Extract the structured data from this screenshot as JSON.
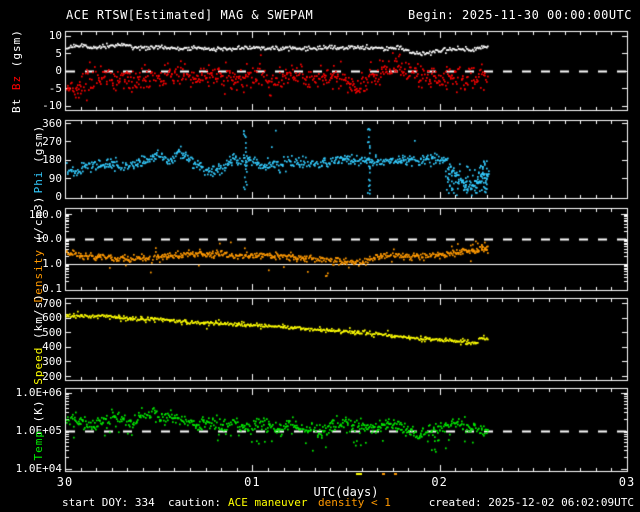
{
  "title": "ACE RTSW[Estimated] MAG & SWEPAM",
  "begin_label": "Begin: 2025-11-30 00:00:00UTC",
  "footer": {
    "start_doy": "start DOY: 334",
    "caution_label": "caution:",
    "caution_maneuver": "ACE maneuver",
    "caution_density": "density < 1",
    "created": "created: 2025-12-02 06:02:09UTC"
  },
  "colors": {
    "background": "#000000",
    "frame": "#ffffff",
    "bt": "#ffffff",
    "bz": "#ff0000",
    "phi": "#33ccff",
    "density": "#ff9900",
    "speed": "#ffff00",
    "temp": "#00ee00"
  },
  "chart_data": {
    "type": "scatter",
    "x_axis": {
      "label": "UTC(days)",
      "range_days": [
        0,
        3
      ],
      "data_end_day": 2.258,
      "ticks": [
        {
          "day": 0,
          "label": "30"
        },
        {
          "day": 1,
          "label": "01"
        },
        {
          "day": 2,
          "label": "02"
        },
        {
          "day": 3,
          "label": "03"
        }
      ]
    },
    "caution_markers": [
      {
        "day": 1.555,
        "width": 6,
        "color": "#ffff00",
        "kind": "maneuver"
      },
      {
        "day": 1.69,
        "width": 3,
        "color": "#ff9900",
        "kind": "density<1"
      },
      {
        "day": 1.755,
        "width": 3,
        "color": "#ff9900",
        "kind": "density<1"
      }
    ],
    "panels": [
      {
        "id": "mag",
        "scale": "linear",
        "label_parts": [
          {
            "text": "Bt ",
            "color": "#ffffff"
          },
          {
            "text": "Bz",
            "color": "#ff0000"
          },
          {
            "text": " (gsm)",
            "color": "#ffffff"
          }
        ],
        "ticks": [
          {
            "value": 10,
            "label": "10"
          },
          {
            "value": 5,
            "label": "5"
          },
          {
            "value": 0,
            "label": "0"
          },
          {
            "value": -5,
            "label": "-5"
          },
          {
            "value": -10,
            "label": "-10"
          }
        ],
        "ref_lines": [
          {
            "value": 0,
            "style": "dashed"
          }
        ],
        "series": [
          {
            "name": "Bt",
            "color": "#ffffff",
            "style": "line",
            "spread": 0.3,
            "x": [
              0,
              0.08,
              0.15,
              0.25,
              0.3,
              0.4,
              0.5,
              0.6,
              0.7,
              0.8,
              0.9,
              1.0,
              1.1,
              1.2,
              1.3,
              1.4,
              1.5,
              1.6,
              1.7,
              1.78,
              1.84,
              1.9,
              2.0,
              2.1,
              2.18,
              2.26
            ],
            "y": [
              6.6,
              7.2,
              6.5,
              7.0,
              7.3,
              6.3,
              6.8,
              6.1,
              6.4,
              6.0,
              6.3,
              6.6,
              6.2,
              6.5,
              6.3,
              6.7,
              6.4,
              6.6,
              6.3,
              6.8,
              5.2,
              4.8,
              5.6,
              6.3,
              6.0,
              7.2
            ]
          },
          {
            "name": "Bz",
            "color": "#ff0000",
            "style": "scatter",
            "spread": 1.6,
            "outlier": {
              "prob": 0.05,
              "mult": 2.4
            },
            "x": [
              0,
              0.06,
              0.12,
              0.2,
              0.3,
              0.4,
              0.5,
              0.6,
              0.7,
              0.8,
              0.9,
              1.0,
              1.1,
              1.2,
              1.3,
              1.4,
              1.5,
              1.58,
              1.66,
              1.72,
              1.78,
              1.85,
              1.95,
              2.05,
              2.12,
              2.2,
              2.26
            ],
            "y": [
              -4,
              -5,
              -2.5,
              -1.5,
              -3,
              -1.5,
              -2.5,
              -1,
              -2.5,
              -1.5,
              -2.5,
              -1.5,
              -3,
              -1,
              -2.5,
              -1.5,
              -3.5,
              -4,
              -1.5,
              1.5,
              0.5,
              -1,
              -2.5,
              -1.5,
              -3,
              -2,
              -0.5
            ]
          }
        ]
      },
      {
        "id": "phi",
        "scale": "linear",
        "label_parts": [
          {
            "text": "Phi",
            "color": "#33ccff"
          },
          {
            "text": " (gsm)",
            "color": "#ffffff"
          }
        ],
        "ticks": [
          {
            "value": 360,
            "label": "360"
          },
          {
            "value": 270,
            "label": "270"
          },
          {
            "value": 180,
            "label": "180"
          },
          {
            "value": 90,
            "label": "90"
          },
          {
            "value": 0,
            "label": "0"
          }
        ],
        "ref_lines": [],
        "series": [
          {
            "name": "Phi",
            "color": "#33ccff",
            "style": "scatter",
            "spread": 13,
            "outlier": {
              "prob": 0.02,
              "uniform": [
                2,
                358
              ]
            },
            "clusters": [
              {
                "day": 0.957,
                "lo": 35,
                "hi": 345,
                "n": 20,
                "dd": 0.008
              },
              {
                "day": 1.617,
                "lo": 8,
                "hi": 335,
                "n": 24,
                "dd": 0.008
              },
              {
                "day": 2.14,
                "lo": 2,
                "hi": 150,
                "n": 70,
                "dd": 0.11
              },
              {
                "day": 2.23,
                "lo": 20,
                "hi": 180,
                "n": 26,
                "dd": 0.03
              }
            ],
            "x": [
              0,
              0.05,
              0.1,
              0.15,
              0.2,
              0.25,
              0.3,
              0.35,
              0.4,
              0.45,
              0.5,
              0.55,
              0.6,
              0.65,
              0.7,
              0.75,
              0.8,
              0.85,
              0.9,
              0.95,
              1.0,
              1.05,
              1.1,
              1.15,
              1.2,
              1.3,
              1.4,
              1.5,
              1.6,
              1.7,
              1.8,
              1.9,
              2.0,
              2.05,
              2.1,
              2.15,
              2.2,
              2.26
            ],
            "y": [
              140,
              115,
              145,
              160,
              145,
              170,
              140,
              155,
              170,
              185,
              205,
              170,
              215,
              185,
              155,
              130,
              120,
              145,
              195,
              165,
              180,
              150,
              160,
              140,
              170,
              160,
              165,
              180,
              175,
              165,
              180,
              180,
              190,
              150,
              75,
              40,
              65,
              125
            ]
          }
        ]
      },
      {
        "id": "density",
        "scale": "log",
        "label_parts": [
          {
            "text": "Density",
            "color": "#ff9900"
          },
          {
            "text": " (/cm3)",
            "color": "#ffffff"
          }
        ],
        "ticks": [
          {
            "value": 100,
            "label": "100.0"
          },
          {
            "value": 10,
            "label": "10.0"
          },
          {
            "value": 1,
            "label": "1.0"
          },
          {
            "value": 0.1,
            "label": "0.1"
          }
        ],
        "ref_lines": [
          {
            "value": 10,
            "style": "dashed"
          },
          {
            "value": 1,
            "style": "solid"
          }
        ],
        "series": [
          {
            "name": "Density",
            "color": "#ff9900",
            "style": "scatter",
            "spread_dec": 0.07,
            "outlier": {
              "prob": 0.07,
              "mult_dec": 0.32
            },
            "clusters": [
              {
                "day": 1.39,
                "lo": 0.3,
                "hi": 0.5,
                "n": 2,
                "dd": 0.004
              },
              {
                "day": 2.2,
                "lo": 4,
                "hi": 8,
                "n": 10,
                "dd": 0.05
              }
            ],
            "x": [
              0,
              0.1,
              0.2,
              0.3,
              0.4,
              0.5,
              0.6,
              0.7,
              0.8,
              0.9,
              1.0,
              1.1,
              1.2,
              1.3,
              1.4,
              1.5,
              1.58,
              1.7,
              1.8,
              1.9,
              2.0,
              2.1,
              2.2,
              2.26
            ],
            "y": [
              2.8,
              2.0,
              1.8,
              1.7,
              1.6,
              1.8,
              2.2,
              2.4,
              2.5,
              2.2,
              2.0,
              2.2,
              1.8,
              1.6,
              1.4,
              1.2,
              1.1,
              2.2,
              2.0,
              2.0,
              2.2,
              3.0,
              3.3,
              4.5
            ]
          }
        ]
      },
      {
        "id": "speed",
        "scale": "linear",
        "label_parts": [
          {
            "text": "Speed",
            "color": "#ffff00"
          },
          {
            "text": " (km/s)",
            "color": "#ffffff"
          }
        ],
        "ticks": [
          {
            "value": 700,
            "label": "700"
          },
          {
            "value": 600,
            "label": "600"
          },
          {
            "value": 500,
            "label": "500"
          },
          {
            "value": 400,
            "label": "400"
          },
          {
            "value": 300,
            "label": "300"
          },
          {
            "value": 200,
            "label": "200"
          }
        ],
        "ref_lines": [],
        "series": [
          {
            "name": "Speed",
            "color": "#ffff00",
            "style": "line",
            "spread": 6,
            "stray": {
              "prob": 0.25,
              "spread": 14
            },
            "x": [
              0,
              0.1,
              0.2,
              0.3,
              0.4,
              0.5,
              0.6,
              0.7,
              0.8,
              0.9,
              1.0,
              1.1,
              1.2,
              1.3,
              1.4,
              1.5,
              1.6,
              1.7,
              1.8,
              1.9,
              2.0,
              2.1,
              2.15,
              2.19,
              2.21,
              2.26
            ],
            "y": [
              615,
              608,
              612,
              595,
              588,
              592,
              575,
              565,
              562,
              555,
              548,
              540,
              532,
              522,
              512,
              505,
              495,
              482,
              470,
              456,
              446,
              438,
              432,
              425,
              458,
              448
            ]
          }
        ]
      },
      {
        "id": "temp",
        "scale": "log",
        "label_parts": [
          {
            "text": "Temp",
            "color": "#00ee00"
          },
          {
            "text": " (K)",
            "color": "#ffffff"
          }
        ],
        "ticks": [
          {
            "value": 1000000,
            "label": "1.0E+06"
          },
          {
            "value": 100000,
            "label": "1.0E+05"
          },
          {
            "value": 10000,
            "label": "1.0E+04"
          }
        ],
        "ref_lines": [
          {
            "value": 100000,
            "style": "dashed"
          }
        ],
        "series": [
          {
            "name": "Temp",
            "color": "#00ee00",
            "style": "scatter",
            "spread_dec": 0.09,
            "outlier": {
              "prob": 0.06,
              "down_dec": [
                0.2,
                0.55
              ]
            },
            "clusters": [
              {
                "day": 2.05,
                "lo": 30000,
                "hi": 60000,
                "n": 8,
                "dd": 0.1
              }
            ],
            "x": [
              0,
              0.05,
              0.1,
              0.15,
              0.2,
              0.25,
              0.3,
              0.35,
              0.4,
              0.45,
              0.5,
              0.55,
              0.6,
              0.65,
              0.7,
              0.75,
              0.8,
              0.85,
              0.9,
              0.95,
              1.0,
              1.05,
              1.1,
              1.15,
              1.2,
              1.25,
              1.3,
              1.35,
              1.4,
              1.45,
              1.5,
              1.55,
              1.6,
              1.65,
              1.7,
              1.75,
              1.8,
              1.85,
              1.9,
              1.95,
              2.0,
              2.05,
              2.1,
              2.15,
              2.2,
              2.26
            ],
            "y": [
              180000,
              220000,
              160000,
              140000,
              180000,
              220000,
              190000,
              150000,
              250000,
              300000,
              220000,
              260000,
              200000,
              160000,
              140000,
              170000,
              150000,
              130000,
              160000,
              130000,
              120000,
              150000,
              130000,
              110000,
              140000,
              120000,
              100000,
              90000,
              110000,
              150000,
              160000,
              140000,
              120000,
              110000,
              130000,
              150000,
              120000,
              90000,
              80000,
              90000,
              100000,
              150000,
              160000,
              120000,
              110000,
              100000
            ]
          }
        ]
      }
    ]
  }
}
